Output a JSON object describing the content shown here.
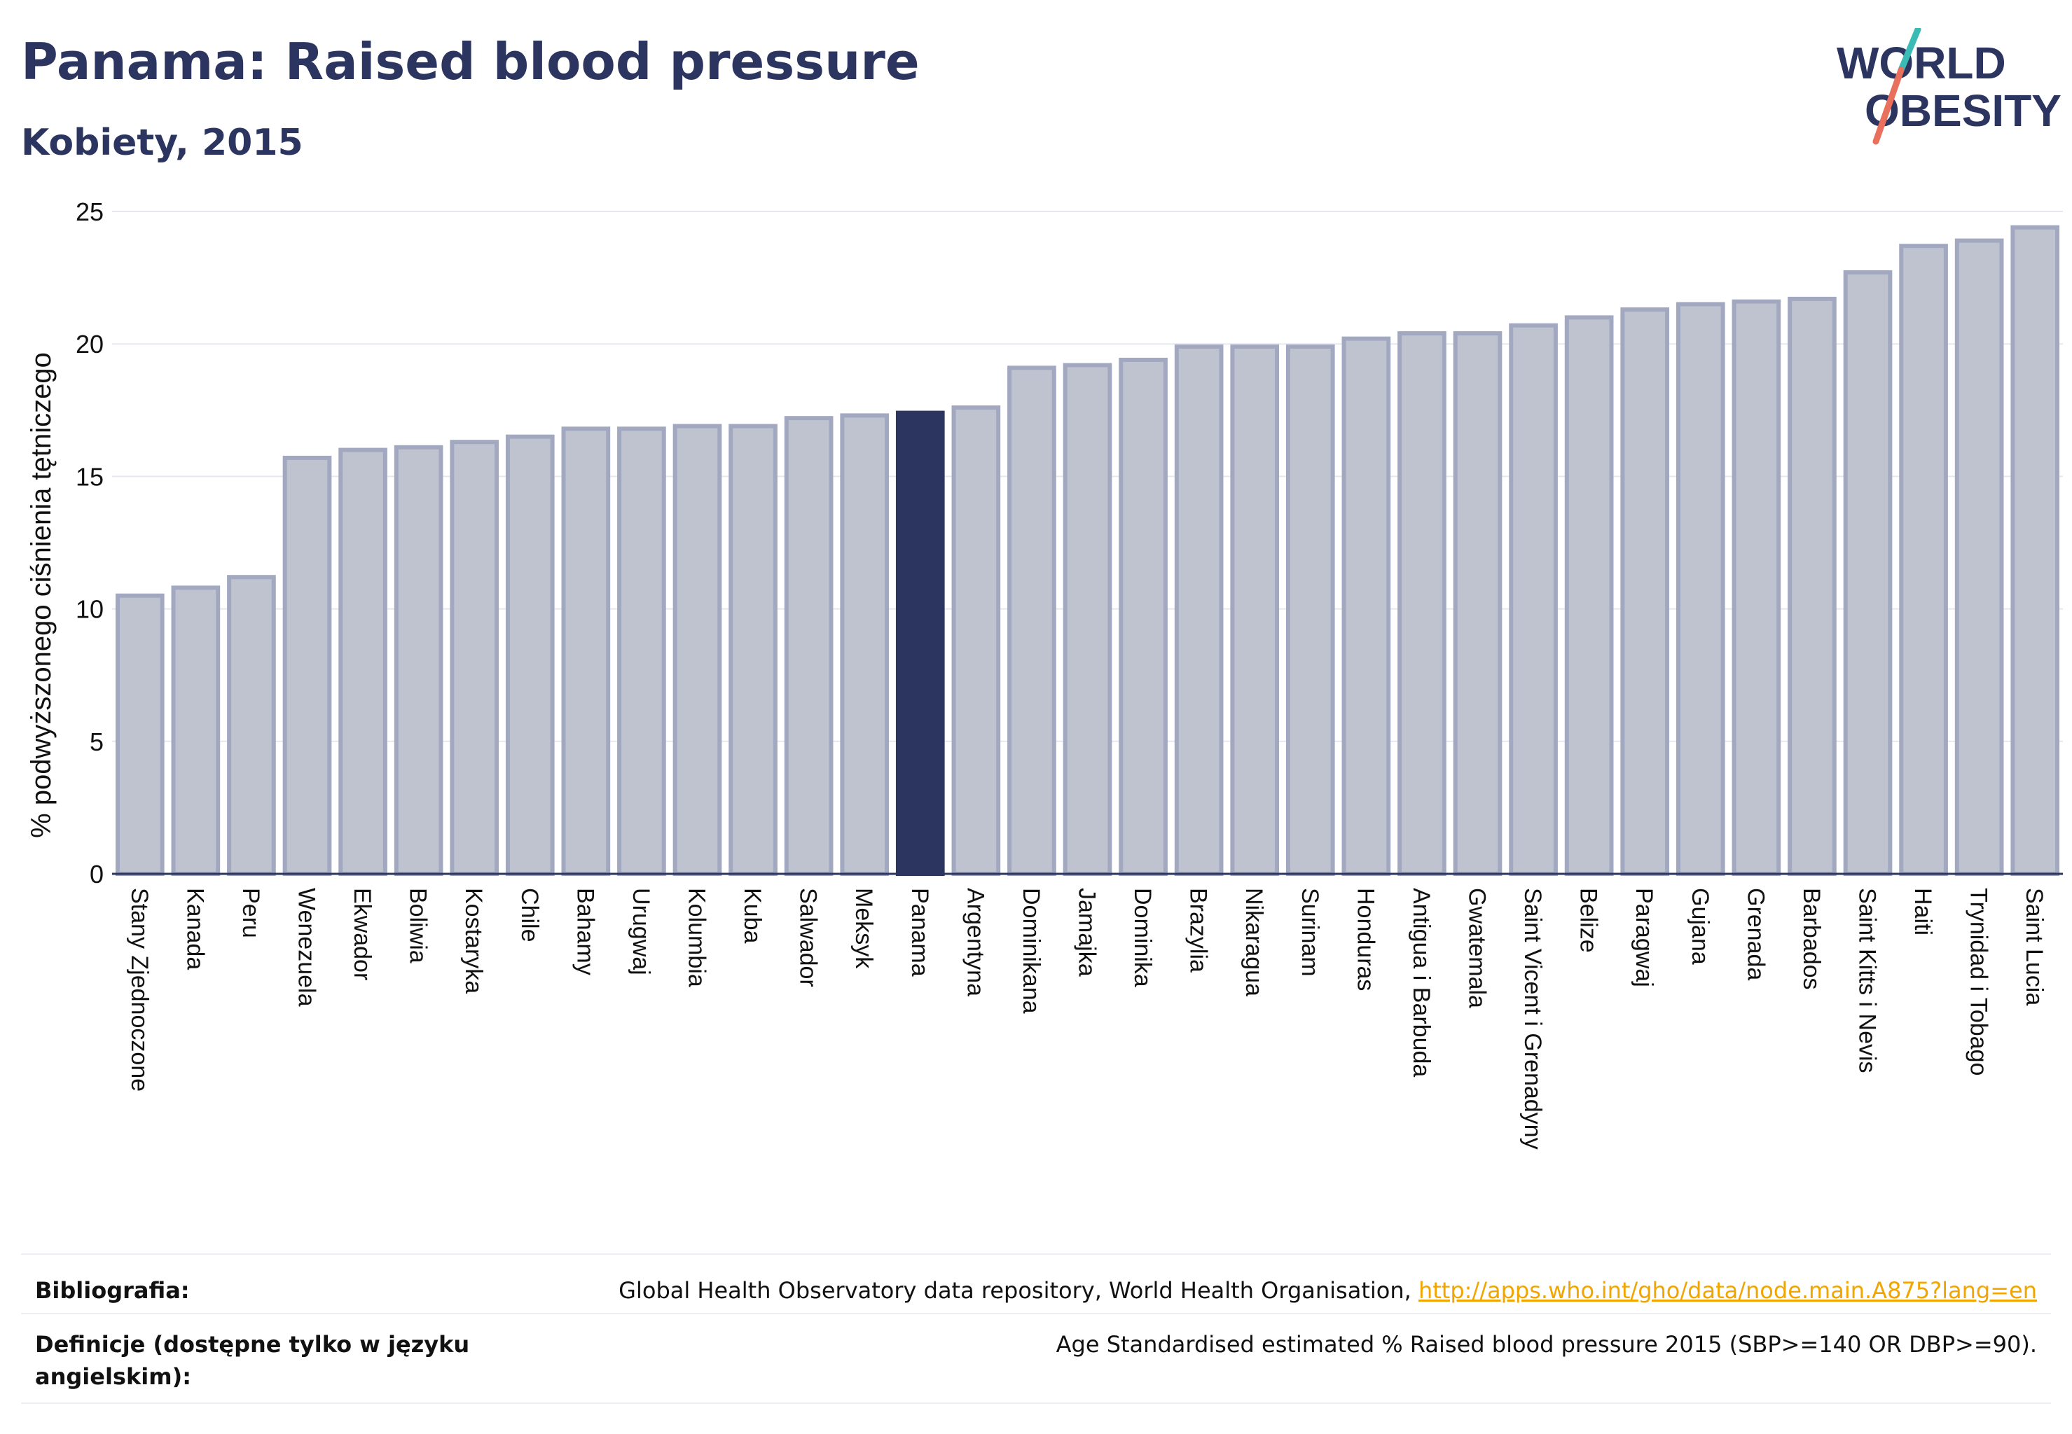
{
  "header": {
    "title": "Panama: Raised blood pressure",
    "subtitle": "Kobiety, 2015"
  },
  "logo": {
    "line1": "WORLD",
    "line2": "OBESITY"
  },
  "chart_data": {
    "type": "bar",
    "title": "Panama: Raised blood pressure",
    "subtitle": "Kobiety, 2015",
    "ylabel": "% podwyższonego ciśnienia tętniczego",
    "xlabel": "",
    "ylim": [
      0,
      25
    ],
    "yticks": [
      0,
      5,
      10,
      15,
      20,
      25
    ],
    "grid": true,
    "highlight": "Panama",
    "colors": {
      "bar": "#bfc3d0",
      "bar_border": "#a2a8c0",
      "highlight": "#2b3560",
      "axis": "#2b3560",
      "grid": "#e6e8ef"
    },
    "categories": [
      "Stany Zjednoczone",
      "Kanada",
      "Peru",
      "Wenezuela",
      "Ekwador",
      "Boliwia",
      "Kostaryka",
      "Chile",
      "Bahamy",
      "Urugwaj",
      "Kolumbia",
      "Kuba",
      "Salwador",
      "Meksyk",
      "Panama",
      "Argentyna",
      "Dominikana",
      "Jamajka",
      "Dominika",
      "Brazylia",
      "Nikaragua",
      "Surinam",
      "Honduras",
      "Antigua i Barbuda",
      "Gwatemala",
      "Saint Vicent i Grenadyny",
      "Belize",
      "Paragwaj",
      "Gujana",
      "Grenada",
      "Barbados",
      "Saint Kitts i Nevis",
      "Haiti",
      "Trynidad i Tobago",
      "Saint Lucia"
    ],
    "values": [
      10.5,
      10.8,
      11.2,
      15.7,
      16.0,
      16.1,
      16.3,
      16.5,
      16.8,
      16.8,
      16.9,
      16.9,
      17.2,
      17.3,
      17.4,
      17.6,
      19.1,
      19.2,
      19.4,
      19.9,
      19.9,
      19.9,
      20.2,
      20.4,
      20.4,
      20.7,
      21.0,
      21.3,
      21.5,
      21.6,
      21.7,
      22.7,
      23.7,
      23.9,
      24.4
    ]
  },
  "footer": {
    "bibliography_label": "Bibliografia:",
    "bibliography_text": "Global Health Observatory data repository, World Health Organisation, ",
    "bibliography_link": "http://apps.who.int/gho/data/node.main.A875?lang=en",
    "definition_label": "Definicje (dostępne tylko w języku angielskim):",
    "definition_text": "Age Standardised estimated % Raised blood pressure 2015 (SBP>=140 OR DBP>=90)."
  }
}
